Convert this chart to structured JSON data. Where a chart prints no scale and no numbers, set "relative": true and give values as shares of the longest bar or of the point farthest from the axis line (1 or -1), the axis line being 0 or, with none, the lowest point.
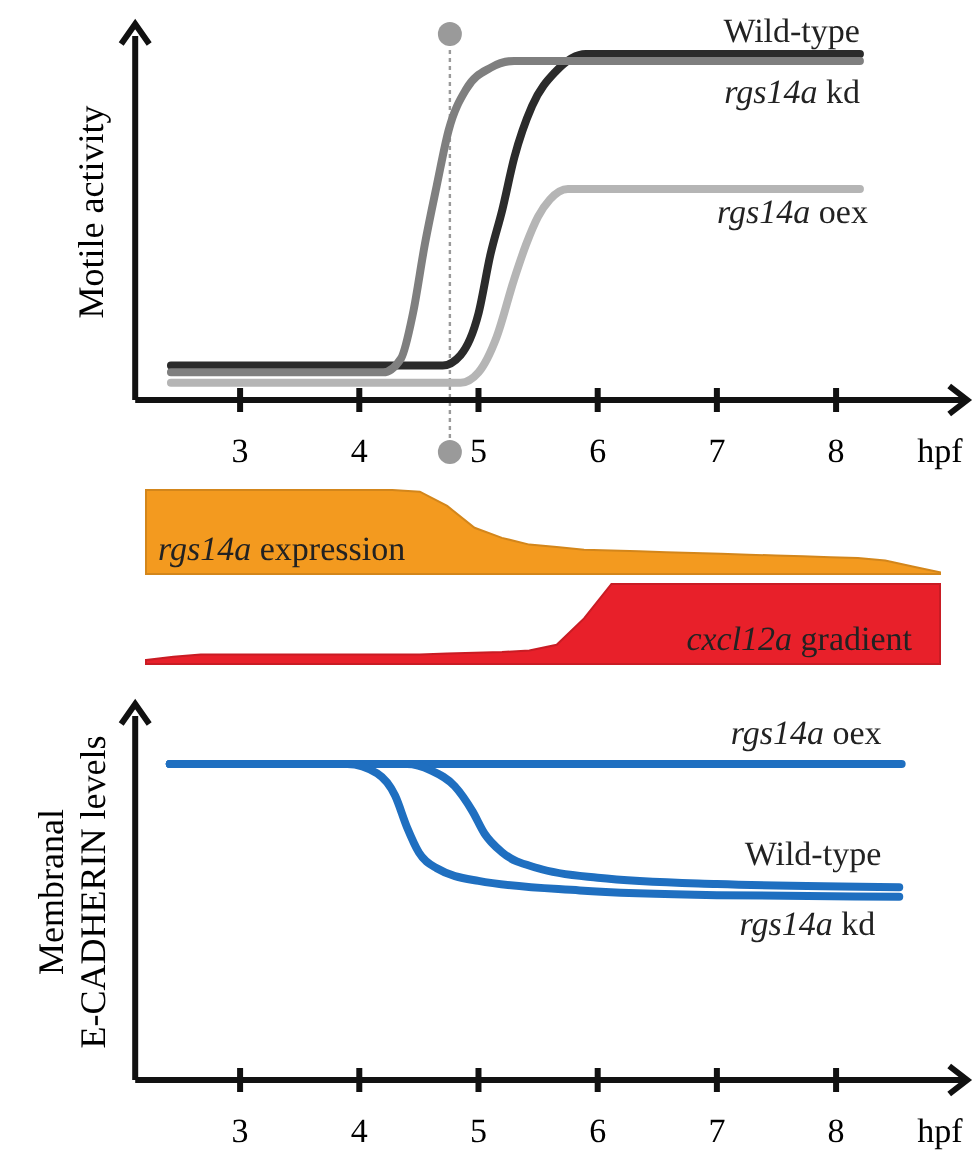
{
  "chart_data": [
    {
      "type": "line",
      "ylabel": "Motile activity",
      "xlabel": "hpf",
      "relative": true,
      "xlim": [
        2.12,
        9.1
      ],
      "xticks": [
        3,
        4,
        5,
        6,
        7,
        8
      ],
      "ref_lines": [
        {
          "axis": "x",
          "value": 4.76,
          "color": "#9a9a9a",
          "line_style": "dotted"
        }
      ],
      "series": [
        {
          "name": "Wild-type",
          "color": "#2b2b2b",
          "x": [
            2.42,
            4.7,
            4.85,
            5.0,
            5.1,
            5.2,
            5.3,
            5.45,
            5.65,
            5.9,
            8.2
          ],
          "values": [
            0.1,
            0.1,
            0.13,
            0.25,
            0.42,
            0.55,
            0.7,
            0.85,
            0.95,
            1,
            1
          ]
        },
        {
          "name": "rgs14a kd",
          "color": "#7f7f7f",
          "x": [
            2.42,
            4.2,
            4.35,
            4.45,
            4.55,
            4.65,
            4.75,
            4.9,
            5.1,
            5.3,
            8.2
          ],
          "values": [
            0.08,
            0.08,
            0.12,
            0.25,
            0.45,
            0.62,
            0.78,
            0.9,
            0.96,
            0.98,
            0.98
          ]
        },
        {
          "name": "rgs14a oex",
          "color": "#b5b5b5",
          "x": [
            2.42,
            4.85,
            5.0,
            5.15,
            5.3,
            5.4,
            5.5,
            5.6,
            5.75,
            8.2
          ],
          "values": [
            0.05,
            0.05,
            0.08,
            0.18,
            0.35,
            0.45,
            0.53,
            0.58,
            0.61,
            0.61
          ]
        }
      ]
    },
    {
      "type": "area",
      "relative": true,
      "tick_labels": false,
      "categories": [
        null,
        null,
        null,
        null,
        null,
        null,
        null,
        null,
        null,
        null,
        null,
        null,
        null,
        null,
        null,
        null,
        null,
        null,
        null,
        null,
        null,
        null,
        null,
        null,
        null,
        null,
        null,
        null,
        null,
        null
      ],
      "series": [
        {
          "name": "rgs14a expression",
          "color": "#f39a1f",
          "values": [
            1,
            1,
            1,
            1,
            1,
            1,
            1,
            1,
            1,
            1,
            0.98,
            0.81,
            0.55,
            0.43,
            0.35,
            0.32,
            0.29,
            0.28,
            0.27,
            0.26,
            0.25,
            0.24,
            0.23,
            0.22,
            0.21,
            0.2,
            0.19,
            0.16,
            0.09,
            0.02
          ]
        }
      ]
    },
    {
      "type": "area",
      "relative": true,
      "tick_labels": false,
      "categories": [
        null,
        null,
        null,
        null,
        null,
        null,
        null,
        null,
        null,
        null,
        null,
        null,
        null,
        null,
        null,
        null,
        null,
        null,
        null,
        null,
        null,
        null,
        null,
        null,
        null,
        null,
        null,
        null,
        null,
        null
      ],
      "series": [
        {
          "name": "cxcl12a gradient",
          "color": "#e8202a",
          "values": [
            0.05,
            0.09,
            0.12,
            0.12,
            0.12,
            0.12,
            0.12,
            0.12,
            0.12,
            0.12,
            0.12,
            0.13,
            0.14,
            0.15,
            0.17,
            0.24,
            0.57,
            1,
            1,
            1,
            1,
            1,
            1,
            1,
            1,
            1,
            1,
            1,
            1,
            1
          ]
        }
      ]
    },
    {
      "type": "line",
      "ylabel": "Membranal\nE-CADHERIN levels",
      "xlabel": "hpf",
      "relative": true,
      "xlim": [
        2.12,
        9.1
      ],
      "xticks": [
        3,
        4,
        5,
        6,
        7,
        8
      ],
      "series": [
        {
          "name": "rgs14a oex",
          "color": "#1f6fc0",
          "x": [
            2.41,
            8.55
          ],
          "values": [
            1,
            1
          ]
        },
        {
          "name": "Wild-type",
          "color": "#1f6fc0",
          "x": [
            2.41,
            4.4,
            4.6,
            4.8,
            4.95,
            5.05,
            5.2,
            5.5,
            6,
            7,
            8.53
          ],
          "values": [
            1,
            1,
            0.98,
            0.93,
            0.85,
            0.78,
            0.72,
            0.67,
            0.64,
            0.62,
            0.61
          ]
        },
        {
          "name": "rgs14a kd",
          "color": "#1f6fc0",
          "x": [
            2.41,
            3.9,
            4.15,
            4.3,
            4.4,
            4.5,
            4.65,
            5,
            5.85,
            7,
            8.53
          ],
          "values": [
            1,
            1,
            0.97,
            0.9,
            0.8,
            0.72,
            0.67,
            0.63,
            0.6,
            0.585,
            0.58
          ]
        }
      ]
    }
  ]
}
